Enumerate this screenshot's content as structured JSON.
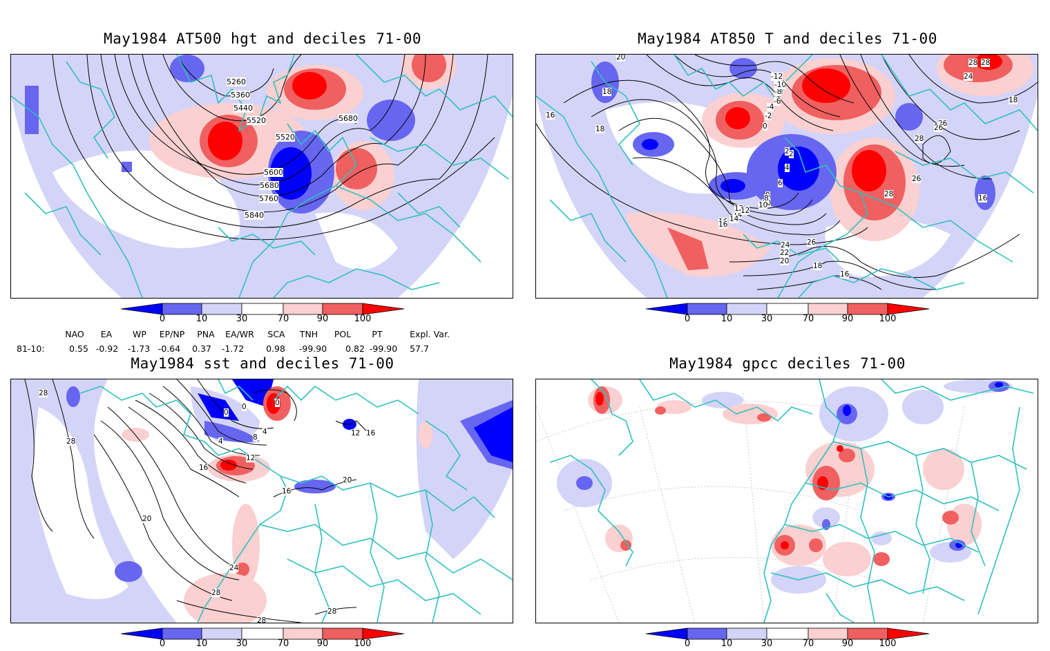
{
  "panels": [
    {
      "title": "May1984 AT500 hgt and deciles 71-00",
      "contours": [
        "5260",
        "5360",
        "5440",
        "5520",
        "5520",
        "5600",
        "5680",
        "5680",
        "5760",
        "5840"
      ]
    },
    {
      "title": "May1984 AT850 T and deciles 71-00",
      "contours": [
        "20",
        "18",
        "18",
        "16",
        "14",
        "12",
        "10",
        "8",
        "6",
        "4",
        "2",
        "0",
        "-2",
        "-4",
        "-6",
        "-8",
        "-10",
        "-12",
        "2",
        "4",
        "6",
        "8",
        "10",
        "12",
        "14",
        "16",
        "18",
        "20",
        "22",
        "24",
        "26",
        "28",
        "26",
        "26",
        "28",
        "24",
        "28",
        "28",
        "18",
        "16",
        "16",
        "26",
        "16"
      ]
    },
    {
      "title": "May1984 sst and deciles 71-00",
      "contours": [
        "28",
        "28",
        "20",
        "24",
        "28",
        "28",
        "28",
        "16",
        "12",
        "8",
        "4",
        "0",
        "0",
        "0",
        "4",
        "16",
        "20",
        "12",
        "16"
      ]
    },
    {
      "title": "May1984 gpcc deciles 71-00",
      "contours": []
    }
  ],
  "colorbar": {
    "labels": [
      "0",
      "10",
      "30",
      "70",
      "90",
      "100"
    ],
    "colors": [
      "#0000ff",
      "#6666f0",
      "#d4d4f8",
      "#ffffff",
      "#fbd0d0",
      "#f06060",
      "#ff0000"
    ]
  },
  "indices": {
    "row_label": "81-10:",
    "headers": [
      "NAO",
      "EA",
      "WP",
      "EP/NP",
      "PNA",
      "EA/WR",
      "SCA",
      "TNH",
      "POL",
      "PT",
      "Expl. Var."
    ],
    "values": [
      "0.55",
      "-0.92",
      "-1.73",
      "-0.64",
      "0.37",
      "-1.72",
      "0.98",
      "-99.90",
      "0.82",
      "-99.90",
      "57.7"
    ]
  },
  "colors": {
    "coast": "#30c0c0",
    "contour": "#000000",
    "border": "#000000"
  }
}
